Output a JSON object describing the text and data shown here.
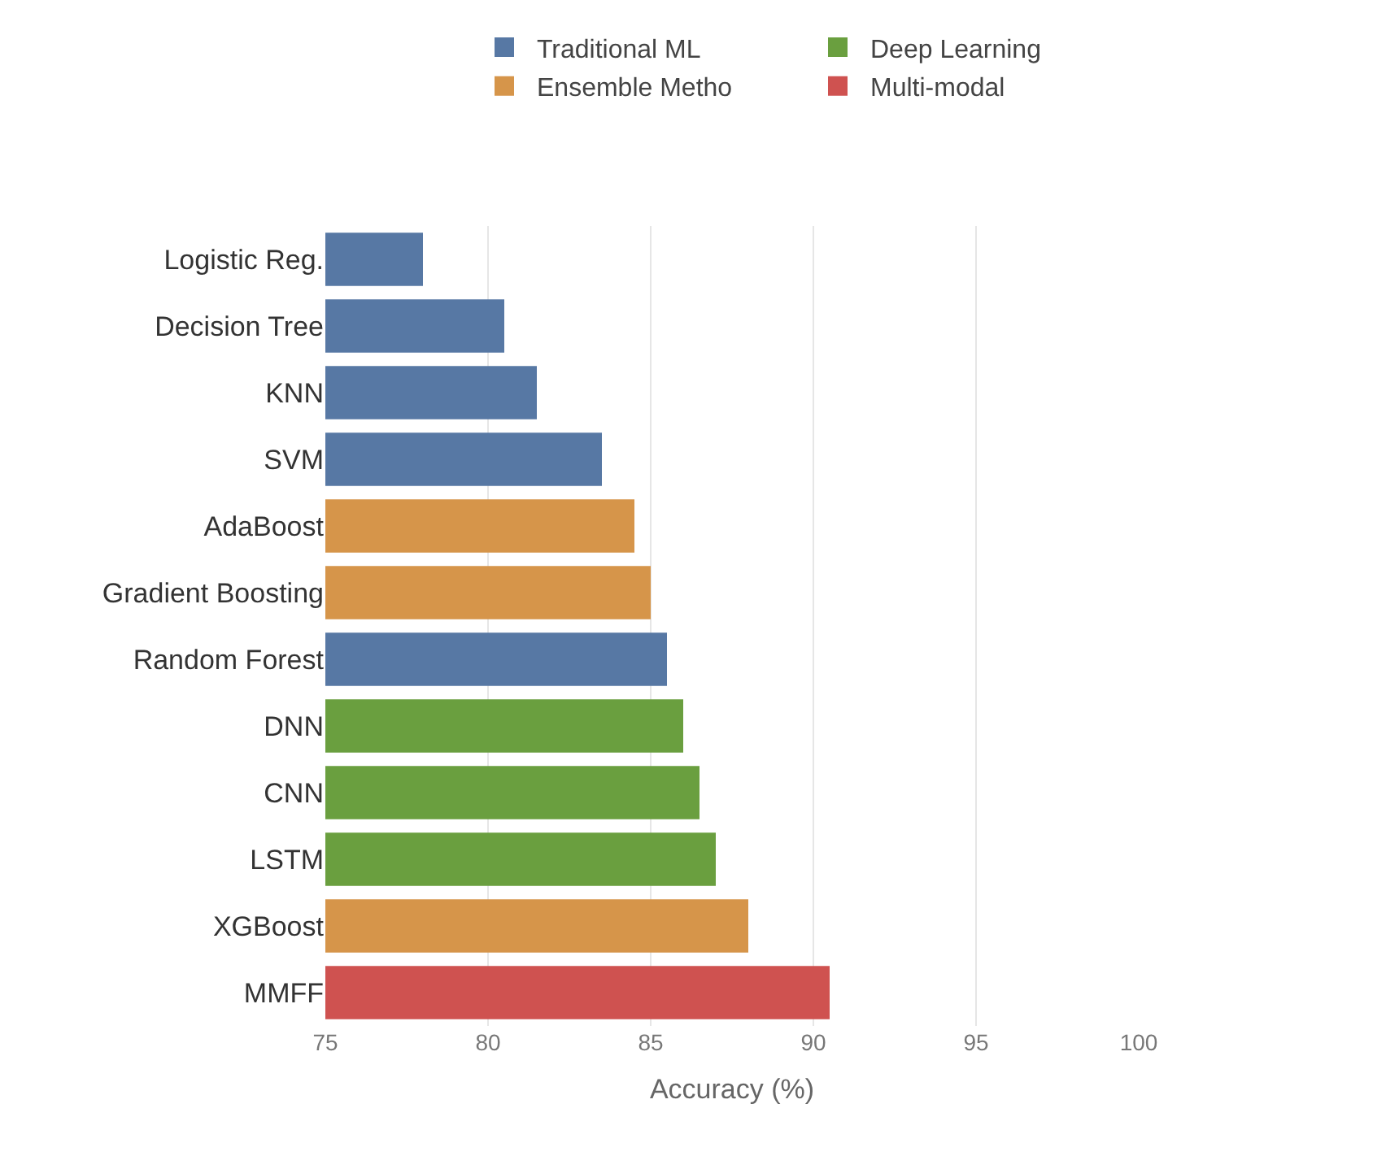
{
  "chart_data": {
    "type": "bar",
    "orientation": "horizontal",
    "xlabel": "Accuracy (%)",
    "categories": [
      "Logistic Reg.",
      "Decision Tree",
      "KNN",
      "SVM",
      "AdaBoost",
      "Gradient Boosting",
      "Random Forest",
      "DNN",
      "CNN",
      "LSTM",
      "XGBoost",
      "MMFF"
    ],
    "series": [
      {
        "name": "Traditional ML",
        "color": "#5778a4",
        "values": [
          78,
          80.5,
          81.5,
          83.5,
          null,
          null,
          85.5,
          null,
          null,
          null,
          null,
          null
        ]
      },
      {
        "name": "Deep Learning",
        "color": "#6a9f3f",
        "values": [
          null,
          null,
          null,
          null,
          null,
          null,
          null,
          86,
          86.5,
          87,
          null,
          null
        ]
      },
      {
        "name": "Ensemble Metho",
        "color": "#d6954a",
        "values": [
          null,
          null,
          null,
          null,
          84.5,
          85,
          null,
          null,
          null,
          null,
          88,
          null
        ]
      },
      {
        "name": "Multi-modal",
        "color": "#cf5250",
        "values": [
          null,
          null,
          null,
          null,
          null,
          null,
          null,
          null,
          null,
          null,
          null,
          90.5
        ]
      }
    ],
    "xlim": [
      75,
      100
    ],
    "xticks": [
      75,
      80,
      85,
      90,
      95,
      100
    ],
    "grid": "x",
    "legend": "top right"
  }
}
